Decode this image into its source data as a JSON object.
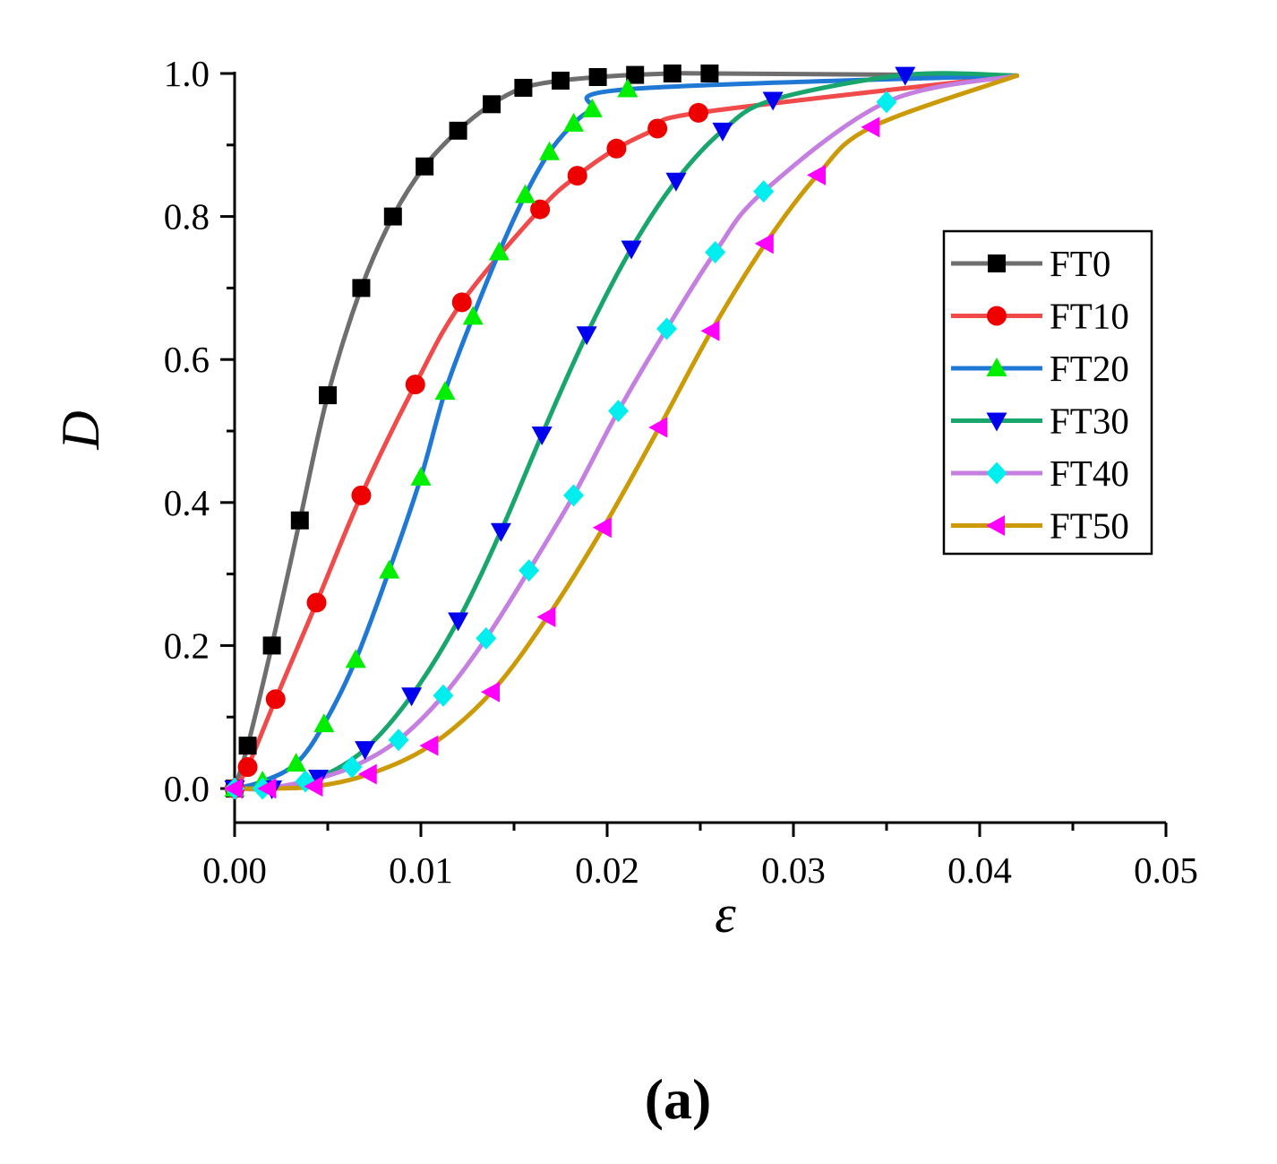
{
  "chart_data": {
    "type": "line",
    "title": "",
    "panel_label": "(a)",
    "xlabel": "ε",
    "ylabel": "D",
    "xlim": [
      0,
      0.05
    ],
    "ylim": [
      0,
      1.0
    ],
    "x_ticks": [
      "0.00",
      "0.01",
      "0.02",
      "0.03",
      "0.04",
      "0.05"
    ],
    "y_ticks": [
      "0.0",
      "0.2",
      "0.4",
      "0.6",
      "0.8",
      "1.0"
    ],
    "legend_position": "right",
    "series": [
      {
        "name": "FT0",
        "color": "#6e6e6e",
        "marker": "square",
        "marker_color": "#000000",
        "x": [
          0.0,
          0.0007,
          0.002,
          0.0035,
          0.005,
          0.0068,
          0.0085,
          0.0102,
          0.012,
          0.0138,
          0.0155,
          0.0175,
          0.0195,
          0.0215,
          0.0235,
          0.0255
        ],
        "y": [
          0.0,
          0.06,
          0.2,
          0.375,
          0.55,
          0.7,
          0.8,
          0.87,
          0.92,
          0.957,
          0.98,
          0.99,
          0.995,
          0.998,
          1.0,
          1.0
        ]
      },
      {
        "name": "FT10",
        "color": "#f04a4a",
        "marker": "circle",
        "marker_color": "#ee0000",
        "x": [
          0.0,
          0.0007,
          0.0022,
          0.0044,
          0.0068,
          0.0097,
          0.0122,
          0.0164,
          0.0184,
          0.0205,
          0.0227,
          0.0249
        ],
        "y": [
          0.0,
          0.03,
          0.125,
          0.26,
          0.41,
          0.565,
          0.68,
          0.81,
          0.857,
          0.895,
          0.923,
          0.945
        ]
      },
      {
        "name": "FT20",
        "color": "#1f78d4",
        "marker": "triangle-up",
        "marker_color": "#00ee00",
        "x": [
          0.0,
          0.0015,
          0.0033,
          0.0048,
          0.0065,
          0.0083,
          0.01,
          0.0113,
          0.0128,
          0.0142,
          0.0156,
          0.0169,
          0.0182,
          0.0192,
          0.0211
        ],
        "y": [
          0.0,
          0.01,
          0.035,
          0.09,
          0.18,
          0.305,
          0.435,
          0.555,
          0.66,
          0.75,
          0.83,
          0.89,
          0.93,
          0.95,
          0.978
        ]
      },
      {
        "name": "FT30",
        "color": "#19a66d",
        "marker": "triangle-down",
        "marker_color": "#0000ee",
        "x": [
          0.0,
          0.002,
          0.0045,
          0.007,
          0.0095,
          0.012,
          0.0143,
          0.0165,
          0.0189,
          0.0213,
          0.0237,
          0.0262,
          0.0289,
          0.036
        ],
        "y": [
          0.0,
          0.0,
          0.015,
          0.055,
          0.13,
          0.235,
          0.36,
          0.495,
          0.635,
          0.755,
          0.85,
          0.92,
          0.963,
          0.998
        ]
      },
      {
        "name": "FT40",
        "color": "#c47fe0",
        "marker": "diamond",
        "marker_color": "#00eeee",
        "x": [
          0.0,
          0.0015,
          0.0038,
          0.0063,
          0.0088,
          0.0112,
          0.0135,
          0.0158,
          0.0182,
          0.0206,
          0.0232,
          0.0258,
          0.0284,
          0.035
        ],
        "y": [
          0.0,
          0.0,
          0.01,
          0.03,
          0.068,
          0.13,
          0.21,
          0.305,
          0.41,
          0.528,
          0.643,
          0.75,
          0.835,
          0.96
        ]
      },
      {
        "name": "FT50",
        "color": "#cc9a06",
        "marker": "triangle-left",
        "marker_color": "#ff00ff",
        "x": [
          0.0,
          0.0018,
          0.0043,
          0.0072,
          0.0105,
          0.0138,
          0.0168,
          0.0198,
          0.0228,
          0.0256,
          0.0285,
          0.0313,
          0.0342
        ],
        "y": [
          0.0,
          0.0,
          0.003,
          0.02,
          0.06,
          0.135,
          0.24,
          0.365,
          0.505,
          0.64,
          0.762,
          0.858,
          0.925
        ]
      }
    ]
  }
}
